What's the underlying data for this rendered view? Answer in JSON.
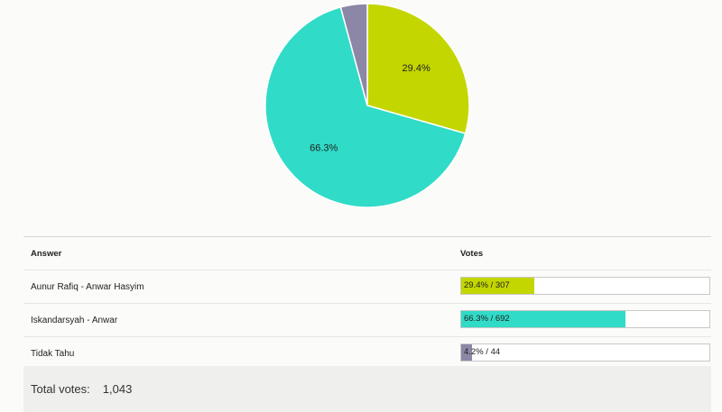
{
  "chart_data": {
    "type": "pie",
    "categories": [
      "Aunur Rafiq - Anwar Hasyim",
      "Iskandarsyah - Anwar",
      "Tidak Tahu"
    ],
    "values": [
      307,
      692,
      44
    ],
    "percent_labels": [
      "29.4%",
      "66.3%",
      ""
    ],
    "colors": [
      "#c3d600",
      "#30dbc7",
      "#8c87a6"
    ]
  },
  "table": {
    "answer_header": "Answer",
    "votes_header": "Votes",
    "rows": [
      {
        "answer": "Aunur Rafiq - Anwar Hasyim",
        "label": "29.4% / 307",
        "percent": 29.4,
        "color": "#c3d600"
      },
      {
        "answer": "Iskandarsyah - Anwar",
        "label": "66.3% / 692",
        "percent": 66.3,
        "color": "#30dbc7"
      },
      {
        "answer": "Tidak Tahu",
        "label": "4.2% / 44",
        "percent": 4.2,
        "color": "#8c87a6"
      }
    ]
  },
  "total": {
    "label": "Total votes:",
    "value": "1,043"
  }
}
